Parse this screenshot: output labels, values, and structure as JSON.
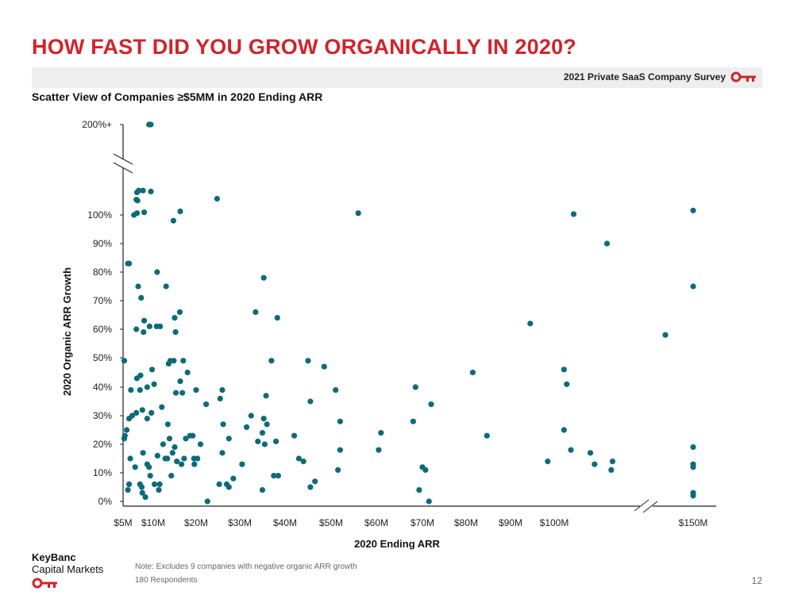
{
  "slide": {
    "title": "HOW FAST DID YOU GROW ORGANICALLY IN 2020?",
    "survey_label": "2021 Private SaaS Company Survey",
    "subtitle": "Scatter View of Companies ≥$5MM in 2020 Ending ARR",
    "note": "Note: Excludes 9 companies with negative organic ARR growth",
    "respondents": "180 Respondents",
    "page_number": "12",
    "brand_line1": "KeyBanc",
    "brand_line2": "Capital Markets",
    "brand_color": "#d2232a",
    "logo_icon": "key-icon"
  },
  "chart_data": {
    "type": "scatter",
    "xlabel": "2020 Ending ARR",
    "ylabel": "2020 Organic ARR Growth",
    "xlim": [
      5,
      150
    ],
    "ylim": [
      0,
      200
    ],
    "x_ticks": [
      "$5M",
      "$10M",
      "$20M",
      "$30M",
      "$40M",
      "$50M",
      "$60M",
      "$70M",
      "$80M",
      "$90M",
      "$100M",
      "$150M"
    ],
    "y_ticks": [
      "0%",
      "10%",
      "20%",
      "30%",
      "40%",
      "50%",
      "60%",
      "70%",
      "80%",
      "90%",
      "100%",
      "200%+"
    ],
    "axis_breaks": [
      "y between 100% and 200%+",
      "x between $100M and $150M"
    ],
    "grid": false,
    "marker_color": "#0d6b78",
    "series": [
      {
        "values": [
          [
            5.2,
            49
          ],
          [
            5.3,
            23
          ],
          [
            5.2,
            22
          ],
          [
            5.6,
            25
          ],
          [
            5.8,
            83
          ],
          [
            6.0,
            83
          ],
          [
            6.0,
            29
          ],
          [
            6.5,
            30
          ],
          [
            6.2,
            15
          ],
          [
            6.3,
            39
          ],
          [
            6.0,
            6
          ],
          [
            5.8,
            4
          ],
          [
            6.8,
            100
          ],
          [
            7.0,
            12
          ],
          [
            7.2,
            31
          ],
          [
            7.3,
            43
          ],
          [
            7.2,
            60
          ],
          [
            7.5,
            75
          ],
          [
            7.2,
            117
          ],
          [
            7.4,
            116
          ],
          [
            7.3,
            125
          ],
          [
            7.6,
            127
          ],
          [
            7.3,
            102
          ],
          [
            7.8,
            39
          ],
          [
            7.9,
            44
          ],
          [
            8.0,
            71
          ],
          [
            8.1,
            5
          ],
          [
            7.8,
            6
          ],
          [
            8.2,
            3
          ],
          [
            8.4,
            59
          ],
          [
            8.5,
            63
          ],
          [
            8.2,
            32
          ],
          [
            8.3,
            17
          ],
          [
            8.3,
            127
          ],
          [
            8.5,
            103
          ],
          [
            8.7,
            1.5
          ],
          [
            9.0,
            29
          ],
          [
            9.0,
            40
          ],
          [
            9.0,
            13
          ],
          [
            9.3,
            12
          ],
          [
            9.4,
            61
          ],
          [
            9.3,
            200
          ],
          [
            9.6,
            200
          ],
          [
            9.8,
            46
          ],
          [
            9.7,
            31
          ],
          [
            9.5,
            9
          ],
          [
            9.6,
            126
          ],
          [
            10.2,
            41
          ],
          [
            10.3,
            6
          ],
          [
            10.8,
            61
          ],
          [
            10.9,
            80
          ],
          [
            11.0,
            16
          ],
          [
            11.3,
            4
          ],
          [
            11.5,
            6
          ],
          [
            11.6,
            61
          ],
          [
            12.0,
            33
          ],
          [
            12.3,
            20
          ],
          [
            12.8,
            15
          ],
          [
            13.0,
            75
          ],
          [
            13.3,
            15
          ],
          [
            13.4,
            27
          ],
          [
            13.6,
            48
          ],
          [
            13.8,
            22
          ],
          [
            14.0,
            49
          ],
          [
            14.2,
            9
          ],
          [
            14.5,
            17
          ],
          [
            14.7,
            98
          ],
          [
            14.8,
            49
          ],
          [
            15.0,
            64
          ],
          [
            15.2,
            59
          ],
          [
            15.3,
            38
          ],
          [
            15.0,
            19
          ],
          [
            15.5,
            14
          ],
          [
            16.2,
            66
          ],
          [
            16.3,
            104
          ],
          [
            16.3,
            42
          ],
          [
            16.6,
            13
          ],
          [
            16.8,
            38
          ],
          [
            17.0,
            49
          ],
          [
            17.2,
            15
          ],
          [
            17.6,
            22
          ],
          [
            18.0,
            45
          ],
          [
            18.6,
            23
          ],
          [
            19.2,
            23
          ],
          [
            19.5,
            15
          ],
          [
            19.6,
            13
          ],
          [
            20.0,
            39
          ],
          [
            20.3,
            15
          ],
          [
            21.0,
            20
          ],
          [
            22.3,
            34
          ],
          [
            22.6,
            0
          ],
          [
            24.8,
            118
          ],
          [
            25.3,
            6
          ],
          [
            25.5,
            36
          ],
          [
            26.0,
            39
          ],
          [
            26.0,
            17
          ],
          [
            26.2,
            27
          ],
          [
            27.0,
            6
          ],
          [
            27.5,
            22
          ],
          [
            27.5,
            5
          ],
          [
            28.5,
            8
          ],
          [
            30.5,
            13
          ],
          [
            31.5,
            26
          ],
          [
            32.5,
            30
          ],
          [
            33.5,
            66
          ],
          [
            34.0,
            21
          ],
          [
            35.0,
            4
          ],
          [
            35.3,
            29
          ],
          [
            35.0,
            24
          ],
          [
            35.3,
            78
          ],
          [
            35.5,
            20
          ],
          [
            35.8,
            37
          ],
          [
            36.0,
            27
          ],
          [
            37.0,
            49
          ],
          [
            37.5,
            9
          ],
          [
            38.0,
            21
          ],
          [
            38.3,
            64
          ],
          [
            38.5,
            9
          ],
          [
            42.0,
            23
          ],
          [
            43.0,
            15
          ],
          [
            44.0,
            14
          ],
          [
            45.0,
            49
          ],
          [
            45.5,
            35
          ],
          [
            45.5,
            5
          ],
          [
            46.5,
            7
          ],
          [
            48.5,
            47
          ],
          [
            51.0,
            39
          ],
          [
            51.5,
            11
          ],
          [
            52.0,
            28
          ],
          [
            52.0,
            18
          ],
          [
            56.0,
            102
          ],
          [
            60.5,
            18
          ],
          [
            61.0,
            24
          ],
          [
            68.0,
            28
          ],
          [
            68.5,
            40
          ],
          [
            69.3,
            4
          ],
          [
            70.0,
            12
          ],
          [
            70.7,
            11
          ],
          [
            71.5,
            0
          ],
          [
            72.0,
            34
          ],
          [
            81.5,
            45
          ],
          [
            84.7,
            23
          ],
          [
            94.5,
            62
          ],
          [
            98.5,
            14
          ],
          [
            103.5,
            46
          ],
          [
            103.5,
            25
          ],
          [
            104.5,
            41
          ],
          [
            106.0,
            18
          ],
          [
            107.0,
            101
          ],
          [
            113.0,
            17
          ],
          [
            114.5,
            13
          ],
          [
            119.0,
            90
          ],
          [
            120.5,
            11
          ],
          [
            121.0,
            14
          ],
          [
            140.0,
            58
          ],
          [
            150.0,
            105
          ],
          [
            150.0,
            75
          ],
          [
            150.0,
            19
          ],
          [
            150.0,
            13
          ],
          [
            150.0,
            12
          ],
          [
            150.0,
            3
          ],
          [
            150.0,
            2
          ]
        ]
      }
    ]
  }
}
